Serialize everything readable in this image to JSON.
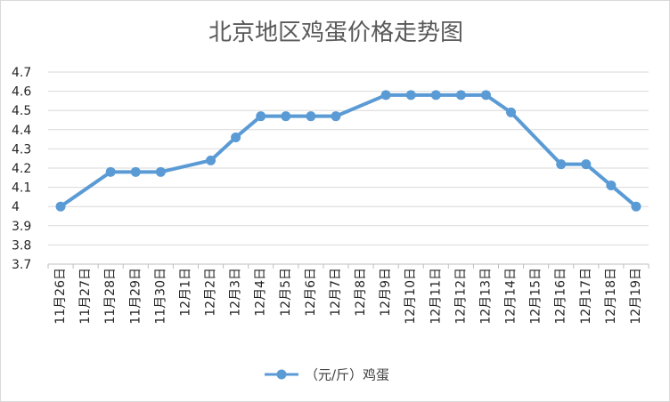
{
  "chart_data": {
    "type": "line",
    "title": "北京地区鸡蛋价格走势图",
    "categories": [
      "11月26日",
      "11月27日",
      "11月28日",
      "11月29日",
      "11月30日",
      "12月1日",
      "12月2日",
      "12月3日",
      "12月4日",
      "12月5日",
      "12月6日",
      "12月7日",
      "12月8日",
      "12月9日",
      "12月10日",
      "12月11日",
      "12月12日",
      "12月13日",
      "12月14日",
      "12月15日",
      "12月16日",
      "12月17日",
      "12月18日",
      "12月19日"
    ],
    "series": [
      {
        "name": "（元/斤）鸡蛋",
        "values": [
          4.0,
          null,
          4.18,
          4.18,
          4.18,
          null,
          4.24,
          4.36,
          4.47,
          4.47,
          4.47,
          4.47,
          null,
          4.58,
          4.58,
          4.58,
          4.58,
          4.58,
          4.49,
          null,
          4.22,
          4.22,
          4.11,
          4.0
        ],
        "color": "#5b9bd5"
      }
    ],
    "ylim": [
      3.7,
      4.7
    ],
    "yticks": [
      "3.7",
      "3.8",
      "3.9",
      "4",
      "4.1",
      "4.2",
      "4.3",
      "4.4",
      "4.5",
      "4.6",
      "4.7"
    ],
    "grid": true,
    "legend": "bottom",
    "connect_gaps": true
  }
}
